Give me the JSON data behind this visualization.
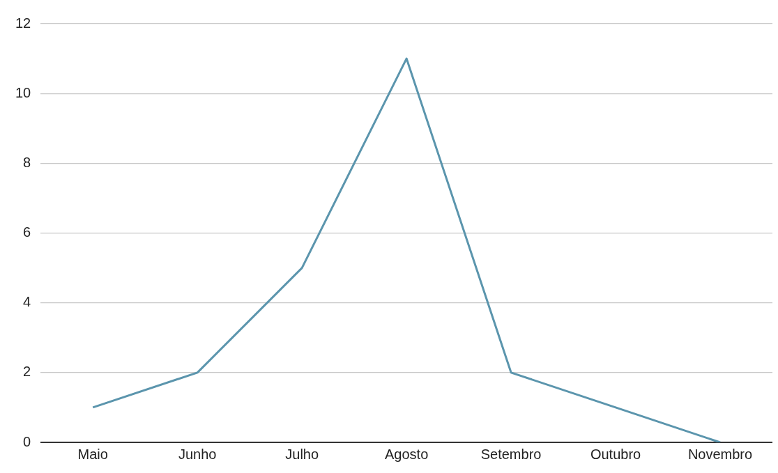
{
  "chart_data": {
    "type": "line",
    "categories": [
      "Maio",
      "Junho",
      "Julho",
      "Agosto",
      "Setembro",
      "Outubro",
      "Novembro"
    ],
    "series": [
      {
        "color": "#5b95ad",
        "values": [
          1,
          2,
          5,
          11,
          2,
          1,
          0
        ]
      }
    ],
    "ylim": [
      0,
      12
    ],
    "yticks": [
      0,
      2,
      4,
      6,
      8,
      10,
      12
    ],
    "grid": "y",
    "marker": "none",
    "line_style": "solid",
    "legend": false
  }
}
